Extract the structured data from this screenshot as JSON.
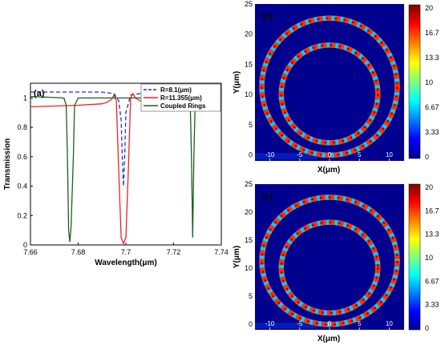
{
  "chart_data": [
    {
      "panel": "(a)",
      "type": "line",
      "xlabel": "Wavelength(μm)",
      "ylabel": "Transmission",
      "xlim": [
        7.66,
        7.74
      ],
      "ylim": [
        0,
        1.1
      ],
      "xticks": [
        "7.66",
        "7.68",
        "7.7",
        "7.72",
        "7.74"
      ],
      "yticks": [
        "0",
        "0.2",
        "0.4",
        "0.6",
        "0.8",
        "1"
      ],
      "legend_position": "top-right",
      "series": [
        {
          "name": "R=8.1(μm)",
          "style": "dashed",
          "color": "#1f2fd8",
          "x": [
            7.66,
            7.69,
            7.695,
            7.697,
            7.698,
            7.6985,
            7.699,
            7.6995,
            7.7,
            7.702,
            7.71,
            7.74
          ],
          "y": [
            1.04,
            1.04,
            1.03,
            0.98,
            0.85,
            0.6,
            0.4,
            0.6,
            0.9,
            1.02,
            1.04,
            1.04
          ]
        },
        {
          "name": "R=11.355(μm)",
          "style": "solid",
          "color": "#ee2222",
          "x": [
            7.66,
            7.68,
            7.69,
            7.692,
            7.694,
            7.695,
            7.696,
            7.697,
            7.698,
            7.699,
            7.7,
            7.701,
            7.702,
            7.703,
            7.704,
            7.706,
            7.71,
            7.72,
            7.74
          ],
          "y": [
            0.94,
            0.95,
            0.96,
            0.97,
            0.99,
            1.02,
            0.98,
            0.5,
            0.05,
            0.01,
            0.05,
            0.5,
            1.0,
            1.03,
            1.0,
            0.98,
            0.97,
            0.97,
            0.97
          ]
        },
        {
          "name": "Coupled Rings",
          "style": "solid",
          "color": "#1f5c24",
          "x": [
            7.66,
            7.674,
            7.675,
            7.6755,
            7.676,
            7.6765,
            7.677,
            7.678,
            7.6785,
            7.68,
            7.726,
            7.727,
            7.7275,
            7.728,
            7.7285,
            7.729,
            7.73,
            7.74
          ],
          "y": [
            1.01,
            1.0,
            0.95,
            0.6,
            0.1,
            0.02,
            0.12,
            0.6,
            0.95,
            1.0,
            1.0,
            0.95,
            0.6,
            0.05,
            0.6,
            0.95,
            1.0,
            1.01
          ]
        }
      ]
    },
    {
      "panel": "(b)",
      "type": "heatmap",
      "xlabel": "X(μm)",
      "ylabel": "Y(μm)",
      "xlim": [
        -12.5,
        12.5
      ],
      "ylim": [
        -1,
        25
      ],
      "xticks": [
        "-10",
        "-5",
        "0",
        "5",
        "10"
      ],
      "yticks": [
        "0",
        "5",
        "10",
        "15",
        "20",
        "25"
      ],
      "colorbar_range": [
        0,
        20
      ],
      "colorbar_ticks": [
        "20",
        "16.7",
        "13.3",
        "10",
        "6.67",
        "3.33",
        "0"
      ],
      "rings": [
        {
          "cx": 0,
          "cy": 11.3,
          "r": 11.355
        },
        {
          "cx": 0,
          "cy": 10.1,
          "r": 8.1
        }
      ]
    },
    {
      "panel": "(c)",
      "type": "heatmap",
      "xlabel": "X(μm)",
      "ylabel": "Y(μm)",
      "xlim": [
        -12.5,
        12.5
      ],
      "ylim": [
        -1,
        25
      ],
      "xticks": [
        "-10",
        "-5",
        "0",
        "5",
        "10"
      ],
      "yticks": [
        "0",
        "5",
        "10",
        "15",
        "20",
        "25"
      ],
      "colorbar_range": [
        0,
        20
      ],
      "colorbar_ticks": [
        "20",
        "16.7",
        "13.3",
        "10",
        "6.67",
        "3.33",
        "0"
      ],
      "rings": [
        {
          "cx": 0,
          "cy": 11.3,
          "r": 11.355
        },
        {
          "cx": 0,
          "cy": 10.1,
          "r": 8.1
        }
      ]
    }
  ],
  "colors": {
    "field_background": "#00008f",
    "axis": "#000000"
  }
}
